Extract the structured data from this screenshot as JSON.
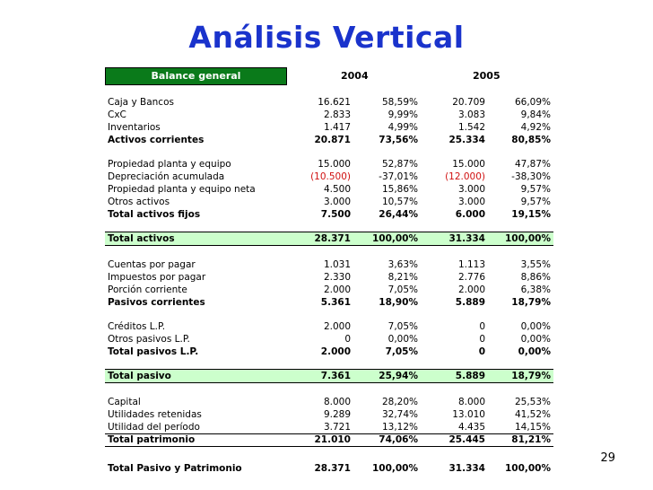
{
  "title": "Análisis Vertical",
  "header": {
    "label": "Balance general",
    "year1": "2004",
    "year2": "2005"
  },
  "rows": [
    {
      "label": "Caja y Bancos",
      "v1": "16.621",
      "p1": "58,59%",
      "v2": "20.709",
      "p2": "66,09%"
    },
    {
      "label": "CxC",
      "v1": "2.833",
      "p1": "9,99%",
      "v2": "3.083",
      "p2": "9,84%"
    },
    {
      "label": "Inventarios",
      "v1": "1.417",
      "p1": "4,99%",
      "v2": "1.542",
      "p2": "4,92%"
    },
    {
      "label": "Activos corrientes",
      "v1": "20.871",
      "p1": "73,56%",
      "v2": "25.334",
      "p2": "80,85%"
    },
    {
      "label": "Propiedad planta y equipo",
      "v1": "15.000",
      "p1": "52,87%",
      "v2": "15.000",
      "p2": "47,87%"
    },
    {
      "label": "Depreciación acumulada",
      "v1": "(10.500)",
      "p1": "-37,01%",
      "v2": "(12.000)",
      "p2": "-38,30%"
    },
    {
      "label": "Propiedad planta y equipo neta",
      "v1": "4.500",
      "p1": "15,86%",
      "v2": "3.000",
      "p2": "9,57%"
    },
    {
      "label": "Otros activos",
      "v1": "3.000",
      "p1": "10,57%",
      "v2": "3.000",
      "p2": "9,57%"
    },
    {
      "label": "Total activos fijos",
      "v1": "7.500",
      "p1": "26,44%",
      "v2": "6.000",
      "p2": "19,15%"
    },
    {
      "label": "Total activos",
      "v1": "28.371",
      "p1": "100,00%",
      "v2": "31.334",
      "p2": "100,00%"
    },
    {
      "label": "Cuentas por pagar",
      "v1": "1.031",
      "p1": "3,63%",
      "v2": "1.113",
      "p2": "3,55%"
    },
    {
      "label": "Impuestos por pagar",
      "v1": "2.330",
      "p1": "8,21%",
      "v2": "2.776",
      "p2": "8,86%"
    },
    {
      "label": "Porción corriente",
      "v1": "2.000",
      "p1": "7,05%",
      "v2": "2.000",
      "p2": "6,38%"
    },
    {
      "label": "Pasivos corrientes",
      "v1": "5.361",
      "p1": "18,90%",
      "v2": "5.889",
      "p2": "18,79%"
    },
    {
      "label": "Créditos L.P.",
      "v1": "2.000",
      "p1": "7,05%",
      "v2": "0",
      "p2": "0,00%"
    },
    {
      "label": "Otros pasivos L.P.",
      "v1": "0",
      "p1": "0,00%",
      "v2": "0",
      "p2": "0,00%"
    },
    {
      "label": "Total pasivos L.P.",
      "v1": "2.000",
      "p1": "7,05%",
      "v2": "0",
      "p2": "0,00%"
    },
    {
      "label": "Total pasivo",
      "v1": "7.361",
      "p1": "25,94%",
      "v2": "5.889",
      "p2": "18,79%"
    },
    {
      "label": "Capital",
      "v1": "8.000",
      "p1": "28,20%",
      "v2": "8.000",
      "p2": "25,53%"
    },
    {
      "label": "Utilidades retenidas",
      "v1": "9.289",
      "p1": "32,74%",
      "v2": "13.010",
      "p2": "41,52%"
    },
    {
      "label": "Utilidad del período",
      "v1": "3.721",
      "p1": "13,12%",
      "v2": "4.435",
      "p2": "14,15%"
    },
    {
      "label": "Total patrimonio",
      "v1": "21.010",
      "p1": "74,06%",
      "v2": "25.445",
      "p2": "81,21%"
    },
    {
      "label": "Total Pasivo y Patrimonio",
      "v1": "28.371",
      "p1": "100,00%",
      "v2": "31.334",
      "p2": "100,00%"
    }
  ],
  "page_number": "29",
  "colors": {
    "title": "#1a33cc",
    "header_bg": "#0a7a1a",
    "band": "#ccffcc",
    "negative": "#d01010"
  }
}
